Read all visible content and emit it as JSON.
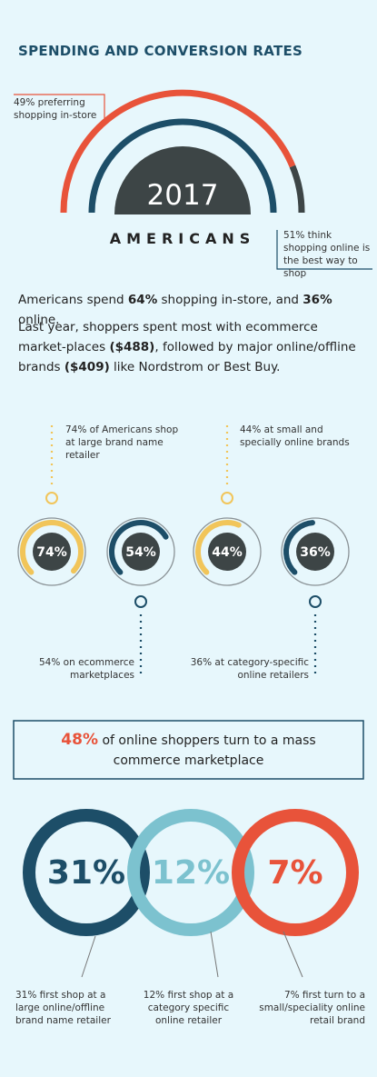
{
  "header": {
    "title": "SPENDING AND CONVERSION RATES"
  },
  "hero": {
    "year": "2017",
    "label": "AMERICANS",
    "left_note": "49% preferring shopping in-store",
    "right_note": "51% think shopping online is the best way to shop"
  },
  "paragraphs": [
    [
      "Americans spend ",
      "64%",
      " shopping in-store, and ",
      "36%",
      " online."
    ],
    [
      "Last year, shoppers spent most with ecommerce market-places ",
      "($488)",
      ", followed by major online/offline brands ",
      "($409)",
      " like Nordstrom or Best Buy."
    ]
  ],
  "rings_small": [
    {
      "value": 74,
      "label": "74%",
      "color": "#f1c55a",
      "note": "74% of Americans shop at large brand name retailer"
    },
    {
      "value": 54,
      "label": "54%",
      "color": "#1d4e68",
      "note": "54% on ecommerce marketplaces"
    },
    {
      "value": 44,
      "label": "44%",
      "color": "#f1c55a",
      "note": "44% at small and specially online brands"
    },
    {
      "value": 36,
      "label": "36%",
      "color": "#1d4e68",
      "note": "36% at category-specific online retailers"
    }
  ],
  "callout": [
    "48%",
    " of online shoppers turn to a mass commerce marketplace"
  ],
  "rings_large": [
    {
      "label": "31%",
      "caption": "31% first shop at a large online/offline brand name retailer"
    },
    {
      "label": "12%",
      "caption": "12% first shop at a category specific online retailer"
    },
    {
      "label": "7%",
      "caption": "7% first turn to a small/speciality online retail brand"
    }
  ]
}
